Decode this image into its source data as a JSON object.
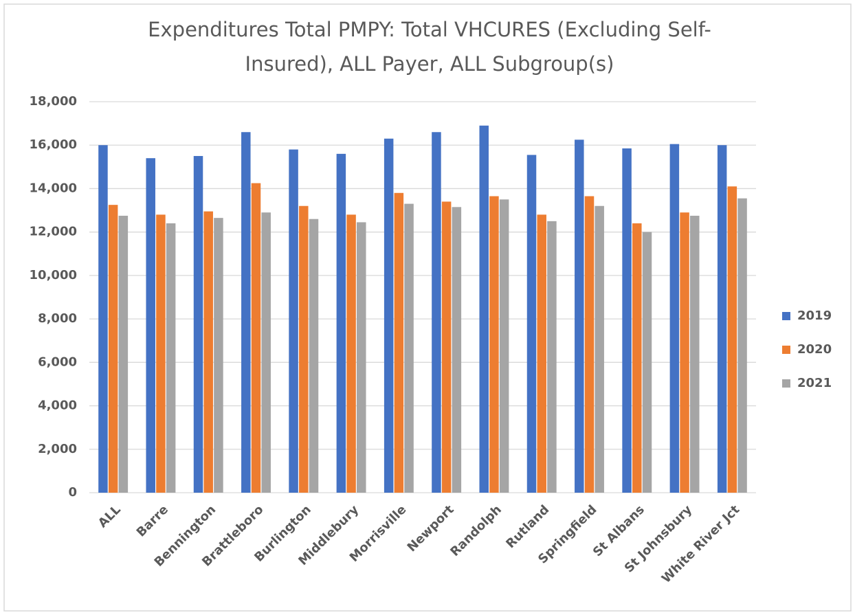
{
  "chart_data": {
    "type": "bar",
    "title": "Expenditures Total PMPY: Total VHCURES (Excluding Self-Insured), ALL Payer, ALL Subgroup(s)",
    "categories": [
      "ALL",
      "Barre",
      "Bennington",
      "Brattleboro",
      "Burlington",
      "Middlebury",
      "Morrisville",
      "Newport",
      "Randolph",
      "Rutland",
      "Springfield",
      "St Albans",
      "St Johnsbury",
      "White River Jct"
    ],
    "series": [
      {
        "name": "2019",
        "color": "#4472c4",
        "values": [
          16000,
          15400,
          15500,
          16600,
          15800,
          15600,
          16300,
          16600,
          16900,
          15550,
          16250,
          15850,
          16050,
          16000
        ]
      },
      {
        "name": "2020",
        "color": "#ed7d31",
        "values": [
          13250,
          12800,
          12950,
          14250,
          13200,
          12800,
          13800,
          13400,
          13650,
          12800,
          13650,
          12400,
          12900,
          14100
        ]
      },
      {
        "name": "2021",
        "color": "#a5a5a5",
        "values": [
          12750,
          12400,
          12650,
          12900,
          12600,
          12450,
          13300,
          13150,
          13500,
          12500,
          13200,
          12000,
          12750,
          13550
        ]
      }
    ],
    "ylim": [
      0,
      18000
    ],
    "yticks": [
      0,
      {
        "value": 2000,
        "label": "2,000"
      },
      {
        "value": 4000,
        "label": "4,000"
      },
      {
        "value": 6000,
        "label": "6,000"
      },
      {
        "value": 8000,
        "label": "8,000"
      },
      {
        "value": 10000,
        "label": "10,000"
      },
      {
        "value": 12000,
        "label": "12,000"
      },
      {
        "value": 14000,
        "label": "14,000"
      },
      {
        "value": 16000,
        "label": "16,000"
      },
      {
        "value": 18000,
        "label": "18,000"
      }
    ],
    "grid": true,
    "legend": "right"
  }
}
